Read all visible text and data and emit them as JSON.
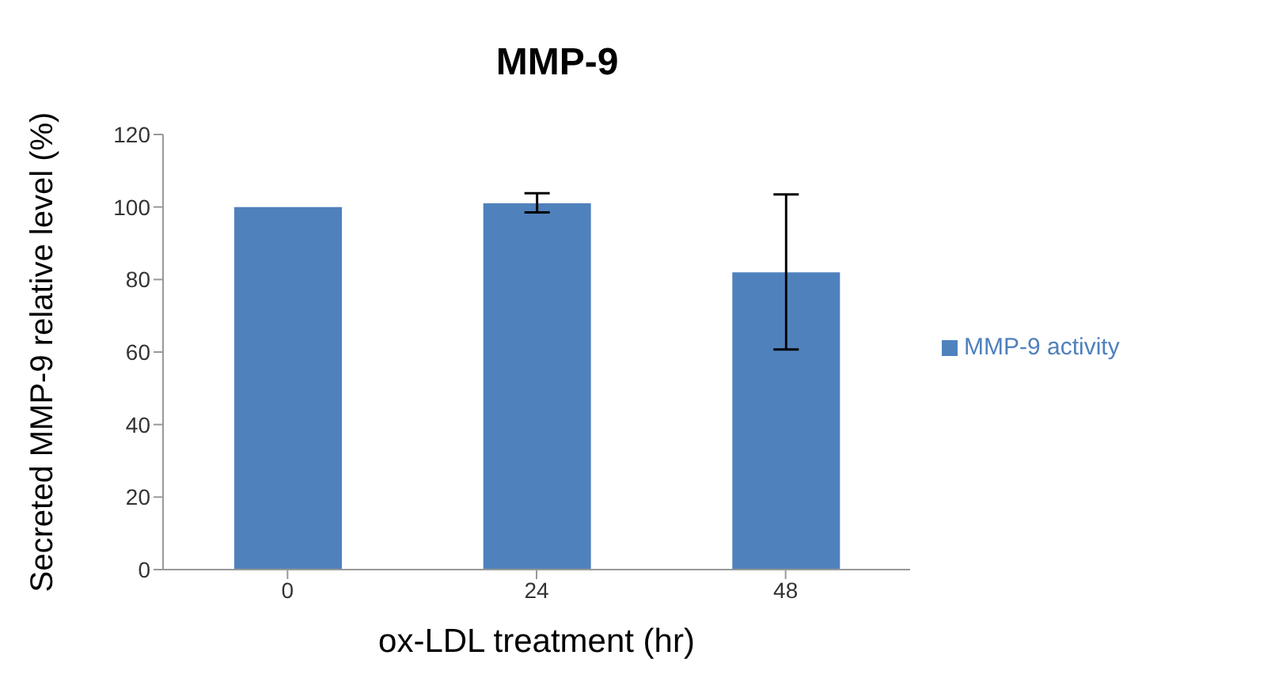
{
  "chart_data": {
    "type": "bar",
    "title": "MMP-9",
    "xlabel": "ox-LDL treatment (hr)",
    "ylabel": "Secreted MMP-9 relative level (%)",
    "categories": [
      "0",
      "24",
      "48"
    ],
    "series": [
      {
        "name": "MMP-9 activity",
        "color": "#4f81bd",
        "values": [
          100,
          101,
          82
        ],
        "errors": [
          null,
          [
            98.5,
            103.8
          ],
          [
            60.7,
            103.5
          ]
        ]
      }
    ],
    "ylim": [
      0,
      120
    ],
    "yticks": [
      0,
      20,
      40,
      60,
      80,
      100,
      120
    ],
    "grid": false,
    "legend": "right"
  }
}
